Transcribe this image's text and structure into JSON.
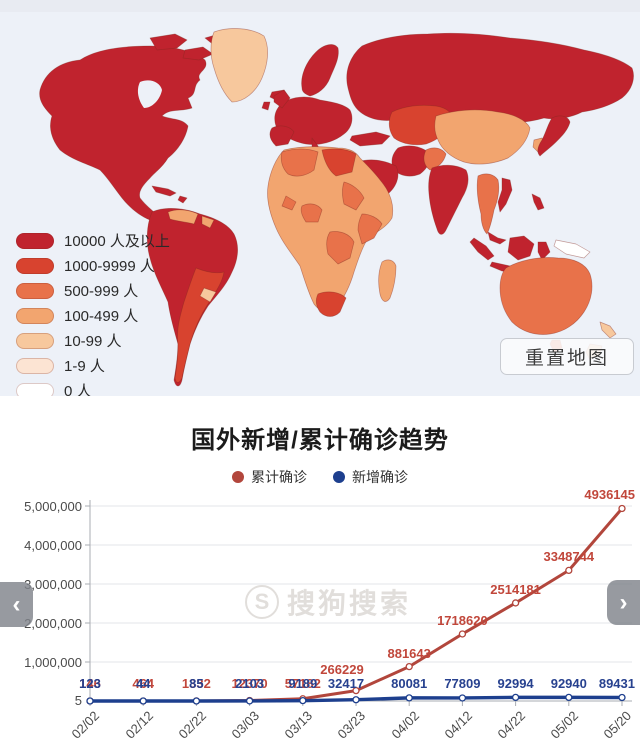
{
  "map_section": {
    "ocean_color": "#edf1f8",
    "legend": {
      "items": [
        {
          "label": "10000 人及以上",
          "color": "#c0232e"
        },
        {
          "label": "1000-9999 人",
          "color": "#d8432f"
        },
        {
          "label": "500-999 人",
          "color": "#e8724a"
        },
        {
          "label": "100-499 人",
          "color": "#f2a56f"
        },
        {
          "label": "10-99 人",
          "color": "#f7c89d"
        },
        {
          "label": "1-9 人",
          "color": "#fce4d3"
        },
        {
          "label": "0 人",
          "color": "#ffffff"
        }
      ]
    },
    "reset_button_label": "重置地图"
  },
  "chart_data": {
    "type": "line",
    "title": "国外新增/累计确诊趋势",
    "categories": [
      "02/02",
      "02/12",
      "02/22",
      "03/03",
      "03/13",
      "03/23",
      "04/02",
      "04/12",
      "04/22",
      "05/02",
      "05/20"
    ],
    "series": [
      {
        "name": "累计确诊",
        "color": "#b2463c",
        "label_color": "#c1473b",
        "values": [
          146,
          464,
          1332,
          12370,
          57182,
          266229,
          881643,
          1718620,
          2514181,
          3348744,
          4936145
        ]
      },
      {
        "name": "新增确诊",
        "color": "#1d3f8e",
        "label_color": "#27418f",
        "values": [
          123,
          44,
          85,
          2103,
          9189,
          32417,
          80081,
          77809,
          92994,
          92940,
          89431
        ]
      }
    ],
    "ylim": [
      5,
      5000000
    ],
    "ytick_labels": [
      "5,000,000",
      "4,000,000",
      "3,000,000",
      "2,000,000",
      "1,000,000"
    ],
    "ybase_label": "5",
    "grid": true,
    "legend_position": "top"
  },
  "watermark": {
    "icon_letter": "S",
    "text": "搜狗搜索"
  },
  "nav": {
    "left_arrow": "‹",
    "right_arrow": "›"
  }
}
